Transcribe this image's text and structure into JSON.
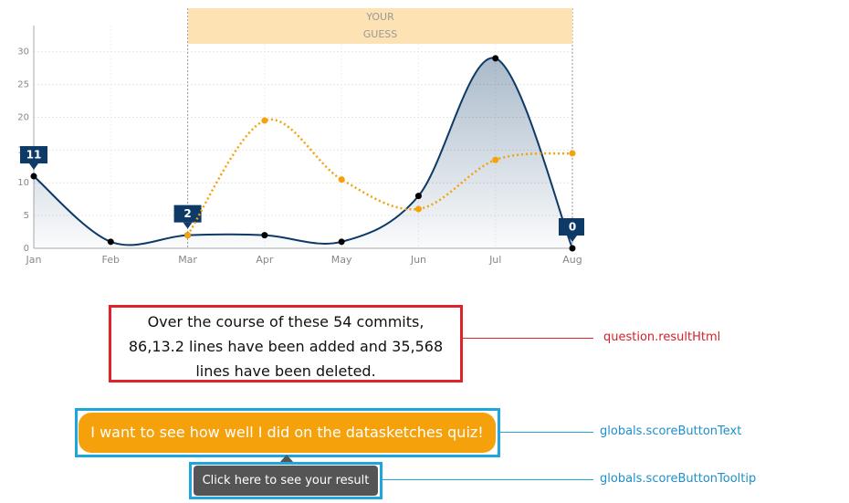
{
  "chart_data": {
    "type": "line",
    "guess_label": "YOUR GUESS",
    "categories": [
      "Jan",
      "Feb",
      "Mar",
      "Apr",
      "May",
      "Jun",
      "Jul",
      "Aug"
    ],
    "series": [
      {
        "color": "#0d3a66",
        "values": [
          11,
          1,
          2,
          2,
          1,
          8,
          29,
          0
        ],
        "value_labels": [
          "11",
          null,
          "2",
          null,
          null,
          null,
          null,
          "0"
        ]
      },
      {
        "color": "#f5a10c",
        "values": [
          null,
          null,
          2,
          19.5,
          10.5,
          6,
          13.5,
          14.5
        ]
      }
    ],
    "ylim": [
      0,
      34
    ],
    "yticks": [
      0,
      5,
      10,
      15,
      20,
      25,
      30
    ],
    "grid": true
  },
  "result": {
    "text": "Over the course of these 54 commits, 86,13.2 lines have been added and 35,568 lines have been deleted.",
    "annotation": "question.resultHtml"
  },
  "score_button": {
    "text": "I want to see how well I did on the datasketches quiz!",
    "annotation": "globals.scoreButtonText"
  },
  "tooltip": {
    "text": "Click here to see your result",
    "annotation": "globals.scoreButtonTooltip"
  }
}
